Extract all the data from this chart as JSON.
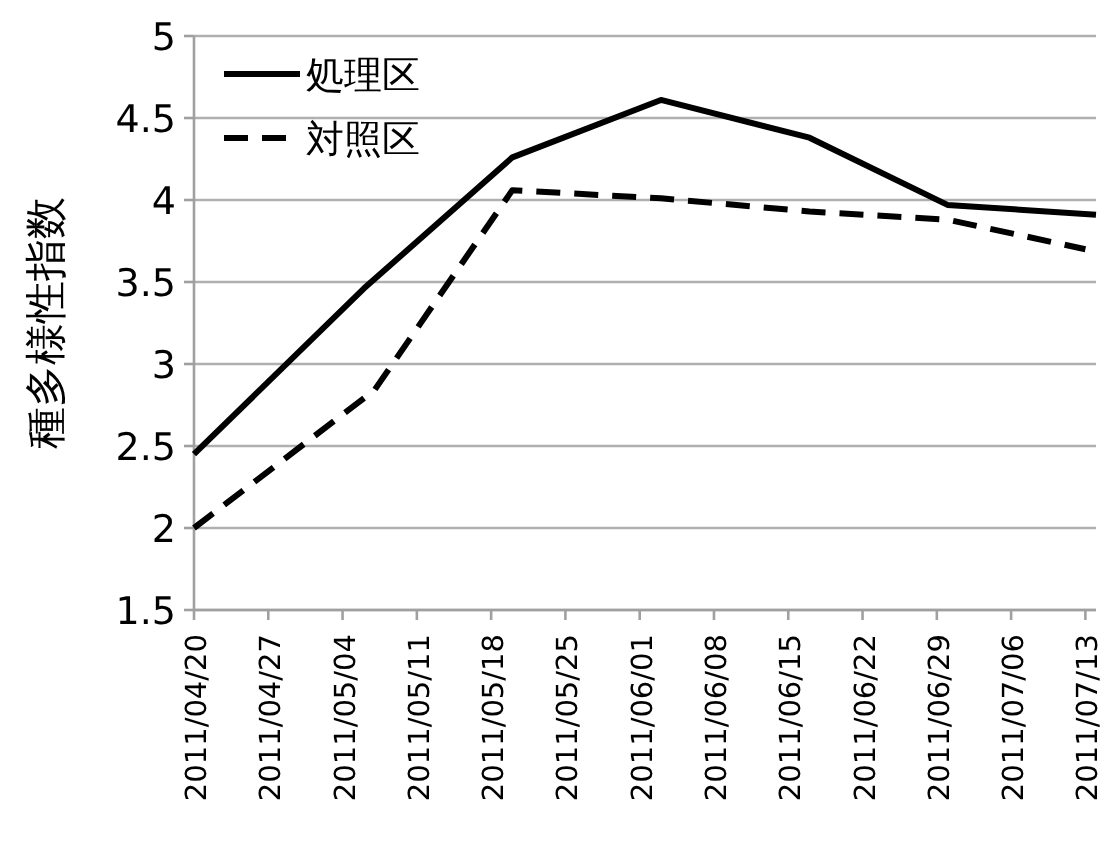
{
  "chart_data": {
    "type": "line",
    "ylabel": "種多様性指数",
    "xlim": [
      "2011-04-20",
      "2011-07-14"
    ],
    "xticks": [
      {
        "value": "2011-04-20",
        "label": "2011/04/20"
      },
      {
        "value": "2011-04-27",
        "label": "2011/04/27"
      },
      {
        "value": "2011-05-04",
        "label": "2011/05/04"
      },
      {
        "value": "2011-05-11",
        "label": "2011/05/11"
      },
      {
        "value": "2011-05-18",
        "label": "2011/05/18"
      },
      {
        "value": "2011-05-25",
        "label": "2011/05/25"
      },
      {
        "value": "2011-06-01",
        "label": "2011/06/01"
      },
      {
        "value": "2011-06-08",
        "label": "2011/06/08"
      },
      {
        "value": "2011-06-15",
        "label": "2011/06/15"
      },
      {
        "value": "2011-06-22",
        "label": "2011/06/22"
      },
      {
        "value": "2011-06-29",
        "label": "2011/06/29"
      },
      {
        "value": "2011-07-06",
        "label": "2011/07/06"
      },
      {
        "value": "2011-07-13",
        "label": "2011/07/13"
      }
    ],
    "ylim": [
      1.5,
      5
    ],
    "yticks": [
      1.5,
      2,
      2.5,
      3,
      3.5,
      4,
      4.5,
      5
    ],
    "grid": "y",
    "legend": "top left",
    "marker": "none",
    "series": [
      {
        "name": "処理区",
        "color": "#000000",
        "line_style": "solid",
        "x": [
          "2011-04-20",
          "2011-05-06",
          "2011-05-20",
          "2011-06-03",
          "2011-06-17",
          "2011-06-30",
          "2011-07-14"
        ],
        "values": [
          2.45,
          3.46,
          4.26,
          4.61,
          4.38,
          3.97,
          3.91
        ]
      },
      {
        "name": "対照区",
        "color": "#000000",
        "line_style": "dashed",
        "x": [
          "2011-04-20",
          "2011-05-07",
          "2011-05-20",
          "2011-06-03",
          "2011-06-17",
          "2011-06-30",
          "2011-07-13"
        ],
        "values": [
          2.0,
          2.84,
          4.06,
          4.01,
          3.93,
          3.88,
          3.7
        ]
      }
    ]
  }
}
